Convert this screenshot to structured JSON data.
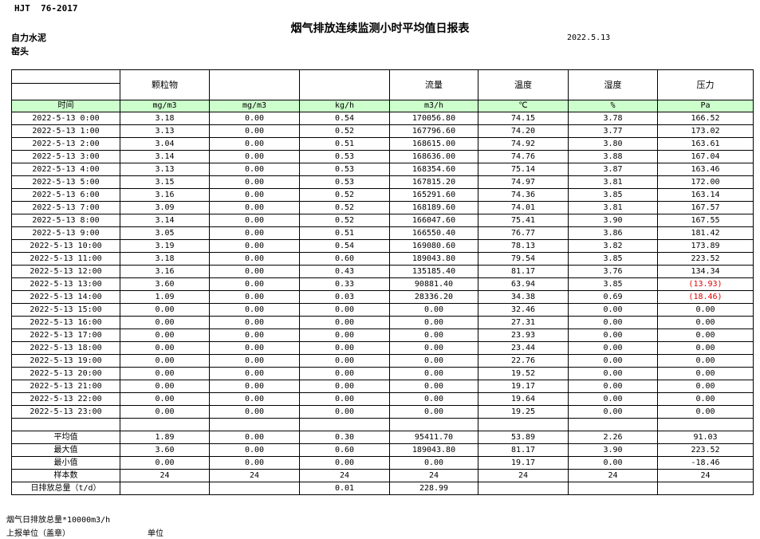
{
  "page": {
    "doc_code": "HJT  76-2017",
    "title": "烟气排放连续监测小时平均值日报表",
    "date": "2022.5.13",
    "company": "自力水泥",
    "location": "窑头"
  },
  "colors": {
    "header_green": "#ccffcc",
    "negative_red": "#e00000",
    "border": "#000000"
  },
  "table": {
    "group_headers": [
      "",
      "颗粒物",
      "",
      "",
      "流量",
      "温度",
      "湿度",
      "压力"
    ],
    "unit_row": [
      "时间",
      "mg/m3",
      "mg/m3",
      "kg/h",
      "m3/h",
      "℃",
      "%",
      "Pa"
    ],
    "rows": [
      [
        "2022-5-13 0:00",
        "3.18",
        "0.00",
        "0.54",
        "170056.80",
        "74.15",
        "3.78",
        "166.52"
      ],
      [
        "2022-5-13 1:00",
        "3.13",
        "0.00",
        "0.52",
        "167796.60",
        "74.20",
        "3.77",
        "173.02"
      ],
      [
        "2022-5-13 2:00",
        "3.04",
        "0.00",
        "0.51",
        "168615.00",
        "74.92",
        "3.80",
        "163.61"
      ],
      [
        "2022-5-13 3:00",
        "3.14",
        "0.00",
        "0.53",
        "168636.00",
        "74.76",
        "3.88",
        "167.04"
      ],
      [
        "2022-5-13 4:00",
        "3.13",
        "0.00",
        "0.53",
        "168354.60",
        "75.14",
        "3.87",
        "163.46"
      ],
      [
        "2022-5-13 5:00",
        "3.15",
        "0.00",
        "0.53",
        "167815.20",
        "74.97",
        "3.81",
        "172.00"
      ],
      [
        "2022-5-13 6:00",
        "3.16",
        "0.00",
        "0.52",
        "165291.60",
        "74.36",
        "3.85",
        "163.14"
      ],
      [
        "2022-5-13 7:00",
        "3.09",
        "0.00",
        "0.52",
        "168189.60",
        "74.01",
        "3.81",
        "167.57"
      ],
      [
        "2022-5-13 8:00",
        "3.14",
        "0.00",
        "0.52",
        "166047.60",
        "75.41",
        "3.90",
        "167.55"
      ],
      [
        "2022-5-13 9:00",
        "3.05",
        "0.00",
        "0.51",
        "166550.40",
        "76.77",
        "3.86",
        "181.42"
      ],
      [
        "2022-5-13 10:00",
        "3.19",
        "0.00",
        "0.54",
        "169080.60",
        "78.13",
        "3.82",
        "173.89"
      ],
      [
        "2022-5-13 11:00",
        "3.18",
        "0.00",
        "0.60",
        "189043.80",
        "79.54",
        "3.85",
        "223.52"
      ],
      [
        "2022-5-13 12:00",
        "3.16",
        "0.00",
        "0.43",
        "135185.40",
        "81.17",
        "3.76",
        "134.34"
      ],
      [
        "2022-5-13 13:00",
        "3.60",
        "0.00",
        "0.33",
        "90881.40",
        "63.94",
        "3.85",
        "(13.93)"
      ],
      [
        "2022-5-13 14:00",
        "1.09",
        "0.00",
        "0.03",
        "28336.20",
        "34.38",
        "0.69",
        "(18.46)"
      ],
      [
        "2022-5-13 15:00",
        "0.00",
        "0.00",
        "0.00",
        "0.00",
        "32.46",
        "0.00",
        "0.00"
      ],
      [
        "2022-5-13 16:00",
        "0.00",
        "0.00",
        "0.00",
        "0.00",
        "27.31",
        "0.00",
        "0.00"
      ],
      [
        "2022-5-13 17:00",
        "0.00",
        "0.00",
        "0.00",
        "0.00",
        "23.93",
        "0.00",
        "0.00"
      ],
      [
        "2022-5-13 18:00",
        "0.00",
        "0.00",
        "0.00",
        "0.00",
        "23.44",
        "0.00",
        "0.00"
      ],
      [
        "2022-5-13 19:00",
        "0.00",
        "0.00",
        "0.00",
        "0.00",
        "22.76",
        "0.00",
        "0.00"
      ],
      [
        "2022-5-13 20:00",
        "0.00",
        "0.00",
        "0.00",
        "0.00",
        "19.52",
        "0.00",
        "0.00"
      ],
      [
        "2022-5-13 21:00",
        "0.00",
        "0.00",
        "0.00",
        "0.00",
        "19.17",
        "0.00",
        "0.00"
      ],
      [
        "2022-5-13 22:00",
        "0.00",
        "0.00",
        "0.00",
        "0.00",
        "19.64",
        "0.00",
        "0.00"
      ],
      [
        "2022-5-13 23:00",
        "0.00",
        "0.00",
        "0.00",
        "0.00",
        "19.25",
        "0.00",
        "0.00"
      ]
    ],
    "summary": [
      [
        "平均值",
        "1.89",
        "0.00",
        "0.30",
        "95411.70",
        "53.89",
        "2.26",
        "91.03"
      ],
      [
        "最大值",
        "3.60",
        "0.00",
        "0.60",
        "189043.80",
        "81.17",
        "3.90",
        "223.52"
      ],
      [
        "最小值",
        "0.00",
        "0.00",
        "0.00",
        "0.00",
        "19.17",
        "0.00",
        "-18.46"
      ],
      [
        "样本数",
        "24",
        "24",
        "24",
        "24",
        "24",
        "24",
        "24"
      ],
      [
        "日排放总量（t/d）",
        "",
        "",
        "0.01",
        "228.99",
        "",
        "",
        ""
      ]
    ]
  },
  "footer": {
    "note": "烟气日排放总量*10000m3/h",
    "report_unit_label": "上报单位（盖章）",
    "unit_label": "单位"
  }
}
